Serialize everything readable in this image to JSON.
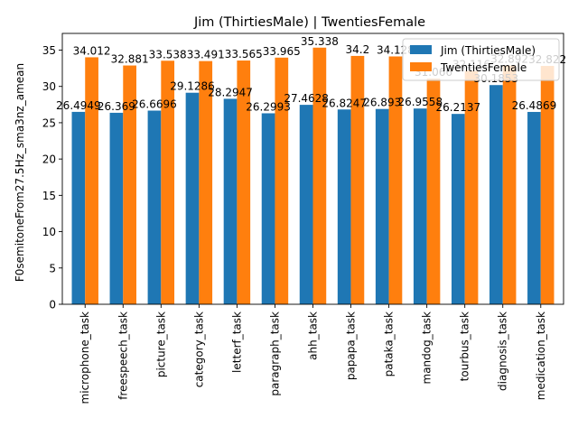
{
  "chart_data": {
    "type": "bar",
    "title": "Jim (ThirtiesMale) | TwentiesFemale",
    "xlabel": "",
    "ylabel": "F0semitoneFrom27.5Hz_sma3nz_amean",
    "ylim": [
      0,
      37.3
    ],
    "yticks": [
      0,
      5,
      10,
      15,
      20,
      25,
      30,
      35
    ],
    "grid": false,
    "legend_position": "top-right",
    "categories": [
      "microphone_task",
      "freespeech_task",
      "picture_task",
      "category_task",
      "letterf_task",
      "paragraph_task",
      "ahh_task",
      "papapa_task",
      "pataka_task",
      "mandog_task",
      "tourbus_task",
      "diagnosis_task",
      "medication_task"
    ],
    "series": [
      {
        "name": "Jim (ThirtiesMale)",
        "color": "#1f77b4",
        "values": [
          26.4949,
          26.369,
          26.6696,
          29.1286,
          28.2947,
          26.2993,
          27.4628,
          26.8247,
          26.893,
          26.9558,
          26.2137,
          30.1853,
          26.4869
        ],
        "labels": [
          "26.4949",
          "26.369",
          "26.6696",
          "29.1286",
          "28.2947",
          "26.2993",
          "27.4628",
          "26.8247",
          "26.893",
          "26.9558",
          "26.2137",
          "30.1853",
          "26.4869"
        ]
      },
      {
        "name": "TwentiesFemale",
        "color": "#ff7f0e",
        "values": [
          34.012,
          32.881,
          33.538,
          33.491,
          33.565,
          33.965,
          35.338,
          34.2,
          34.128,
          31.066,
          32.116,
          32.892,
          32.822
        ],
        "labels": [
          "34.012",
          "32.881",
          "33.538",
          "33.491",
          "33.565",
          "33.965",
          "35.338",
          "34.2",
          "34.128",
          "31.066",
          "32.116",
          "32.892",
          "32.822"
        ]
      }
    ]
  }
}
